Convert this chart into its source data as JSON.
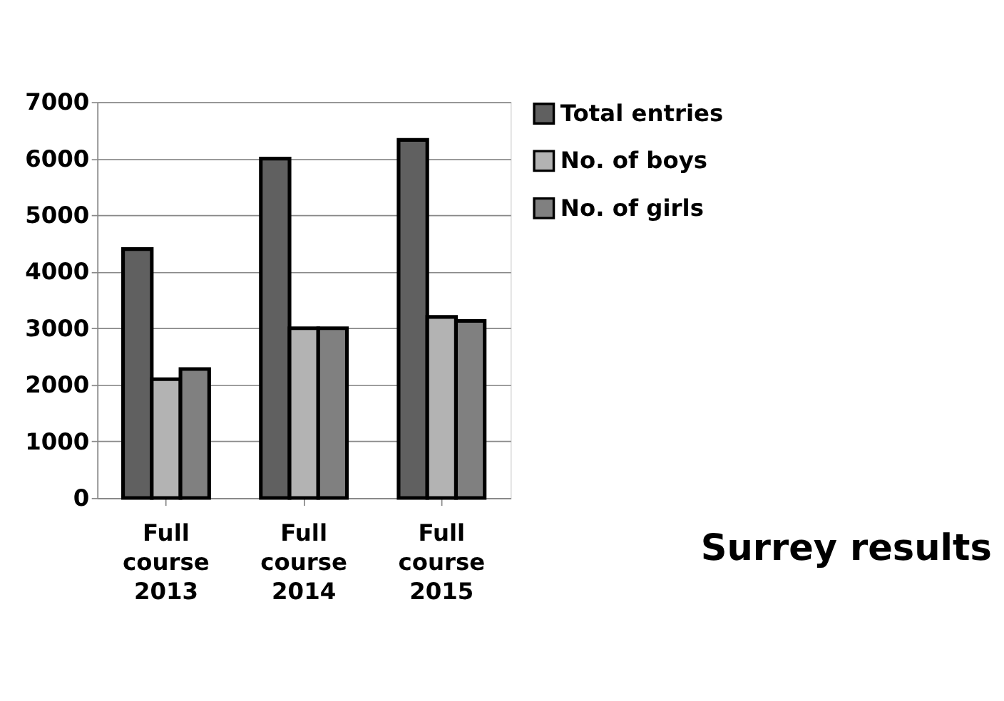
{
  "chart_data": {
    "type": "bar",
    "title": "Surrey results",
    "categories": [
      "Full course 2013",
      "Full course 2014",
      "Full course 2015"
    ],
    "series": [
      {
        "name": "Total entries",
        "color": "#606060",
        "values": [
          4400,
          6000,
          6330
        ]
      },
      {
        "name": "No. of boys",
        "color": "#b3b3b3",
        "values": [
          2100,
          3000,
          3200
        ]
      },
      {
        "name": "No. of girls",
        "color": "#808080",
        "values": [
          2280,
          3000,
          3130
        ]
      }
    ],
    "ylim": [
      0,
      7000
    ],
    "yticks": [
      0,
      1000,
      2000,
      3000,
      4000,
      5000,
      6000,
      7000
    ],
    "grid": "y",
    "legend": "right"
  }
}
